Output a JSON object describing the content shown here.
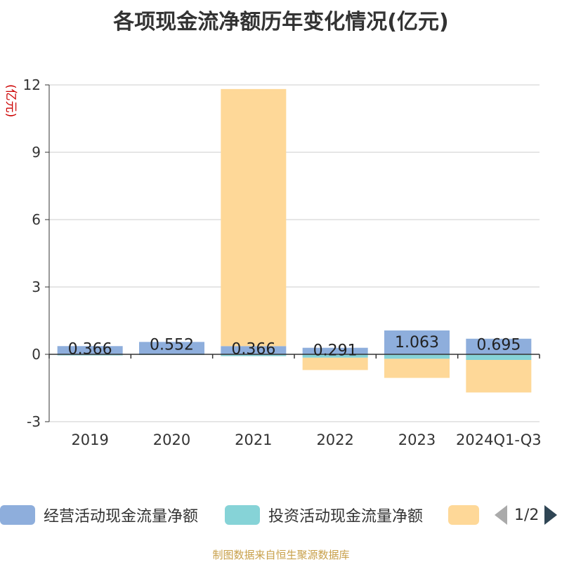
{
  "title": "各项现金流净额历年变化情况(亿元)",
  "y_unit": "(亿元)",
  "source": "制图数据来自恒生聚源数据库",
  "pager": "1/2",
  "colors": {
    "operating": "#8eaedc",
    "investing": "#86d3d7",
    "financing": "#fed898",
    "grid": "#cccccc",
    "axis": "#333333"
  },
  "chart_data": {
    "type": "bar",
    "stacked": true,
    "categories": [
      "2019",
      "2020",
      "2021",
      "2022",
      "2023",
      "2024Q1-Q3"
    ],
    "ylim": [
      -3,
      12
    ],
    "yticks": [
      -3,
      0,
      3,
      6,
      9,
      12
    ],
    "series": [
      {
        "name": "经营活动现金流量净额",
        "values": [
          0.366,
          0.552,
          0.366,
          0.291,
          1.063,
          0.695
        ],
        "labels": [
          "0.366",
          "0.552",
          "0.366",
          "0.291",
          "1.063",
          "0.695"
        ]
      },
      {
        "name": "投资活动现金流量净额",
        "values": [
          -0.05,
          -0.03,
          -0.08,
          -0.15,
          -0.2,
          -0.25
        ]
      },
      {
        "name": "",
        "values": [
          0.0,
          0.0,
          11.45,
          -0.55,
          -0.85,
          -1.45
        ]
      }
    ],
    "legend_position": "bottom"
  }
}
